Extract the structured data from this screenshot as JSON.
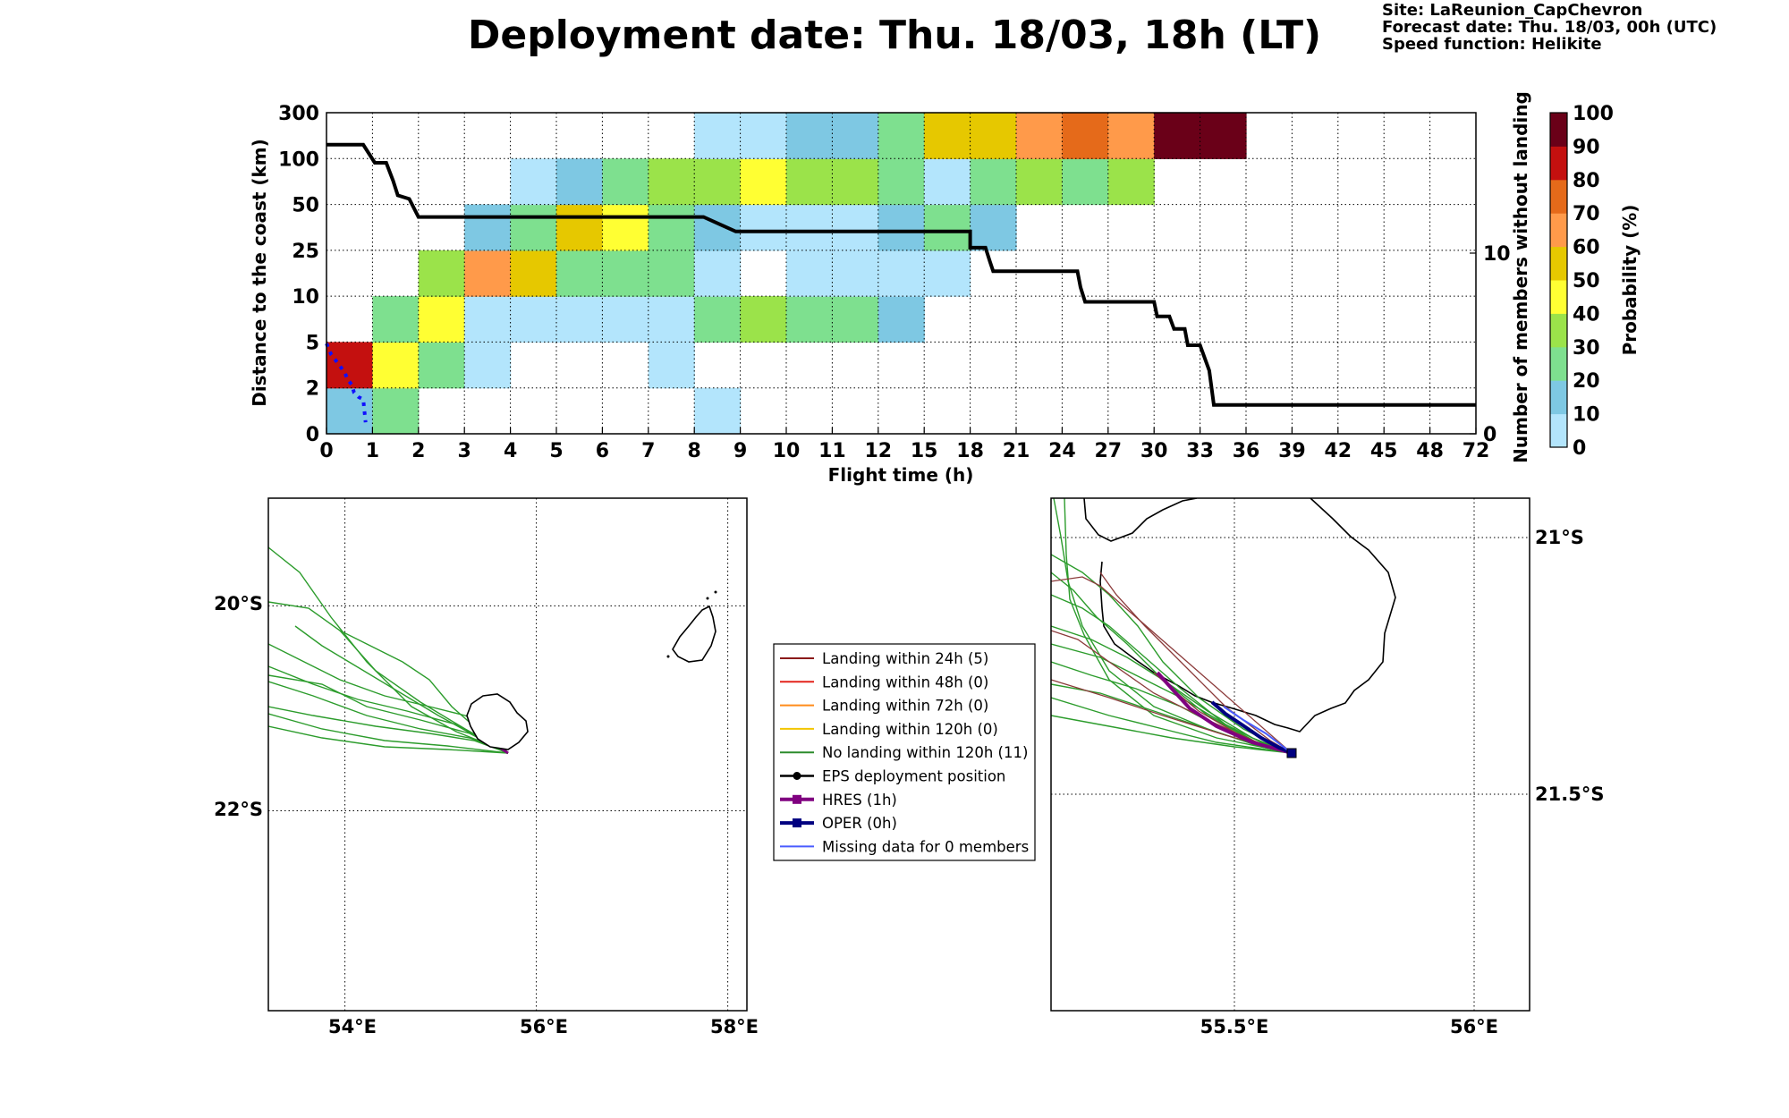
{
  "header": {
    "title": "Deployment date: Thu. 18/03, 18h (LT)",
    "site": "Site: LaReunion_CapChevron",
    "forecast": "Forecast date: Thu. 18/03, 00h (UTC)",
    "speed": "Speed function: Helikite"
  },
  "chart_data": [
    {
      "type": "heatmap",
      "xlabel": "Flight time (h)",
      "ylabel": "Distance to the coast (km)",
      "ylabel_right": "Number of members without landing",
      "x_ticks": [
        "0",
        "1",
        "2",
        "3",
        "4",
        "5",
        "6",
        "7",
        "8",
        "9",
        "10",
        "11",
        "12",
        "15",
        "18",
        "21",
        "24",
        "27",
        "30",
        "33",
        "36",
        "39",
        "42",
        "45",
        "48",
        "72"
      ],
      "y_ticks": [
        "0",
        "2",
        "5",
        "10",
        "25",
        "50",
        "100",
        "300"
      ],
      "y_ticks_right": [
        "0",
        "10"
      ],
      "grid": true,
      "colorbar": {
        "label": "Probability (%)",
        "ticks": [
          "0",
          "10",
          "20",
          "30",
          "40",
          "50",
          "60",
          "70",
          "80",
          "90",
          "100"
        ],
        "colors": [
          "#b3e5fc",
          "#7ec8e3",
          "#7ee08f",
          "#9be34a",
          "#ffff33",
          "#e6c800",
          "#ff9a4a",
          "#e56a1a",
          "#c4100f",
          "#6a0018"
        ]
      },
      "cells": [
        {
          "row": 0,
          "cols": [
            [
              0,
              1,
              10
            ],
            [
              1,
              2,
              20
            ],
            [
              8,
              9,
              0
            ]
          ]
        },
        {
          "row": 1,
          "cols": [
            [
              0,
              1,
              80
            ],
            [
              1,
              2,
              40
            ],
            [
              2,
              3,
              20
            ],
            [
              3,
              4,
              0
            ],
            [
              7,
              8,
              0
            ]
          ]
        },
        {
          "row": 2,
          "cols": [
            [
              1,
              2,
              20
            ],
            [
              2,
              3,
              40
            ],
            [
              3,
              4,
              0
            ],
            [
              4,
              5,
              0
            ],
            [
              5,
              6,
              0
            ],
            [
              6,
              7,
              0
            ],
            [
              7,
              8,
              0
            ],
            [
              8,
              9,
              20
            ],
            [
              9,
              10,
              30
            ],
            [
              10,
              11,
              20
            ],
            [
              11,
              12,
              20
            ],
            [
              12,
              13,
              10
            ]
          ]
        },
        {
          "row": 3,
          "cols": [
            [
              2,
              3,
              30
            ],
            [
              3,
              4,
              60
            ],
            [
              4,
              5,
              50
            ],
            [
              5,
              6,
              20
            ],
            [
              6,
              7,
              20
            ],
            [
              7,
              8,
              20
            ],
            [
              8,
              9,
              0
            ],
            [
              10,
              11,
              0
            ],
            [
              11,
              12,
              0
            ],
            [
              12,
              13,
              0
            ],
            [
              13,
              14,
              0
            ]
          ]
        },
        {
          "row": 4,
          "cols": [
            [
              3,
              4,
              10
            ],
            [
              4,
              5,
              20
            ],
            [
              5,
              6,
              50
            ],
            [
              6,
              7,
              40
            ],
            [
              7,
              8,
              20
            ],
            [
              8,
              9,
              10
            ],
            [
              9,
              10,
              0
            ],
            [
              10,
              11,
              0
            ],
            [
              11,
              12,
              0
            ],
            [
              12,
              13,
              10
            ],
            [
              13,
              14,
              20
            ],
            [
              14,
              15,
              10
            ]
          ]
        },
        {
          "row": 5,
          "cols": [
            [
              4,
              5,
              0
            ],
            [
              5,
              6,
              10
            ],
            [
              6,
              7,
              20
            ],
            [
              7,
              8,
              30
            ],
            [
              8,
              9,
              30
            ],
            [
              9,
              10,
              40
            ],
            [
              10,
              11,
              30
            ],
            [
              11,
              12,
              30
            ],
            [
              12,
              13,
              20
            ],
            [
              13,
              14,
              0
            ],
            [
              14,
              15,
              20
            ],
            [
              15,
              16,
              30
            ],
            [
              16,
              17,
              20
            ],
            [
              17,
              18,
              30
            ]
          ]
        },
        {
          "row": 6,
          "cols": [
            [
              8,
              9,
              0
            ],
            [
              9,
              10,
              0
            ],
            [
              10,
              11,
              10
            ],
            [
              11,
              12,
              10
            ],
            [
              12,
              13,
              20
            ],
            [
              13,
              14,
              50
            ],
            [
              14,
              15,
              50
            ],
            [
              15,
              16,
              60
            ],
            [
              16,
              17,
              70
            ],
            [
              17,
              18,
              60
            ],
            [
              18,
              19,
              90
            ],
            [
              19,
              20,
              90
            ]
          ]
        }
      ],
      "members_line": {
        "note": "members without landing vs flight time (h)",
        "points": [
          [
            0,
            16
          ],
          [
            0.8,
            16
          ],
          [
            1.05,
            15
          ],
          [
            1.3,
            15
          ],
          [
            1.45,
            14
          ],
          [
            1.55,
            13.2
          ],
          [
            1.8,
            13
          ],
          [
            2,
            12
          ],
          [
            8.2,
            12
          ],
          [
            8.9,
            11.2
          ],
          [
            18,
            11.2
          ],
          [
            18,
            10.3
          ],
          [
            19,
            10.3
          ],
          [
            19.3,
            9.5
          ],
          [
            19.5,
            9
          ],
          [
            25,
            9
          ],
          [
            25.2,
            8.1
          ],
          [
            25.5,
            7.3
          ],
          [
            30,
            7.3
          ],
          [
            30.2,
            6.5
          ],
          [
            31,
            6.5
          ],
          [
            31.3,
            5.8
          ],
          [
            32,
            5.8
          ],
          [
            32.2,
            4.9
          ],
          [
            33,
            4.9
          ],
          [
            33.6,
            3.5
          ],
          [
            33.9,
            1.6
          ],
          [
            72,
            1.6
          ]
        ]
      },
      "blue_trace": [
        [
          0,
          4.9
        ],
        [
          0.1,
          4.2
        ],
        [
          0.2,
          3.8
        ],
        [
          0.3,
          3.4
        ],
        [
          0.4,
          3.0
        ],
        [
          0.45,
          2.6
        ],
        [
          0.55,
          2.2
        ],
        [
          0.6,
          1.8
        ],
        [
          0.7,
          1.6
        ],
        [
          0.8,
          1.5
        ],
        [
          0.85,
          0.5
        ]
      ]
    },
    {
      "type": "scatter",
      "subtype": "trajectory map (wide)",
      "x_ticks": [
        "54°E",
        "56°E",
        "58°E"
      ],
      "y_ticks": [
        "20°S",
        "22°S"
      ],
      "lon_range": [
        53.2,
        58.2
      ],
      "lat_range": [
        -23.95,
        -18.95
      ]
    },
    {
      "type": "scatter",
      "subtype": "trajectory map (zoom)",
      "x_ticks": [
        "55.5°E",
        "56°E"
      ],
      "y_ticks": [
        "21°S",
        "21.5°S"
      ],
      "lon_range": [
        55.1,
        56.1
      ],
      "lat_range": [
        -21.88,
        -20.88
      ]
    }
  ],
  "legend": {
    "items": [
      {
        "label": "Landing within 24h (5)",
        "color": "#8b1a1a",
        "marker": "none"
      },
      {
        "label": "Landing within 48h (0)",
        "color": "#e3241b",
        "marker": "none"
      },
      {
        "label": "Landing within 72h (0)",
        "color": "#ff8c1a",
        "marker": "none"
      },
      {
        "label": "Landing within 120h (0)",
        "color": "#f2c500",
        "marker": "none"
      },
      {
        "label": "No landing within 120h (11)",
        "color": "#2c8c2c",
        "marker": "none"
      },
      {
        "label": "EPS deployment position",
        "color": "#000000",
        "marker": "circle"
      },
      {
        "label": "HRES (1h)",
        "color": "#800080",
        "marker": "square"
      },
      {
        "label": "OPER (0h)",
        "color": "#000080",
        "marker": "square"
      },
      {
        "label": "Missing data for 0 members",
        "color": "#4a5cff",
        "marker": "none"
      }
    ]
  }
}
